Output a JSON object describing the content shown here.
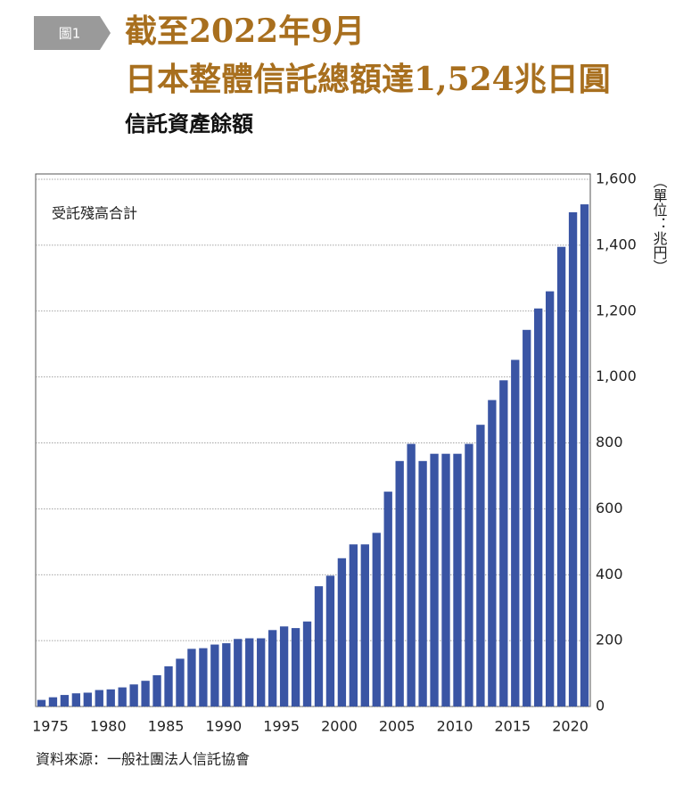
{
  "chart_data": {
    "type": "bar",
    "badge": "圖1",
    "title": [
      "截至2022年9月",
      "日本整體信託總額達1,524兆日圓"
    ],
    "subtitle": "信託資產餘額",
    "annotation": "受託殘高合計",
    "unit": "（單位：兆円）",
    "source": "資料來源：一般社團法人信託協會",
    "categories": [
      "1975",
      null,
      null,
      null,
      null,
      "1980",
      null,
      null,
      null,
      null,
      "1985",
      null,
      null,
      null,
      null,
      "1990",
      null,
      null,
      null,
      null,
      "1995",
      null,
      null,
      null,
      null,
      "2000",
      null,
      null,
      null,
      null,
      "2005",
      null,
      null,
      null,
      null,
      "2010",
      null,
      null,
      null,
      null,
      "2015",
      null,
      null,
      null,
      null,
      "2020",
      null,
      null
    ],
    "values": [
      20,
      28,
      35,
      40,
      42,
      50,
      52,
      58,
      67,
      78,
      95,
      122,
      145,
      175,
      177,
      188,
      192,
      205,
      207,
      207,
      232,
      243,
      238,
      258,
      365,
      397,
      450,
      492,
      492,
      527,
      652,
      745,
      797,
      745,
      767,
      767,
      767,
      797,
      855,
      930,
      990,
      1052,
      1143,
      1208,
      1260,
      1395,
      1500,
      1524
    ],
    "color": "#3a55a4",
    "ylim": [
      0,
      1600
    ],
    "yticks": [
      0,
      200,
      400,
      600,
      800,
      {
        "value": 1000,
        "label": "1,000"
      },
      {
        "value": 1200,
        "label": "1,200"
      },
      {
        "value": 1400,
        "label": "1,400"
      },
      {
        "value": 1600,
        "label": "1,600"
      }
    ],
    "grid": true
  }
}
